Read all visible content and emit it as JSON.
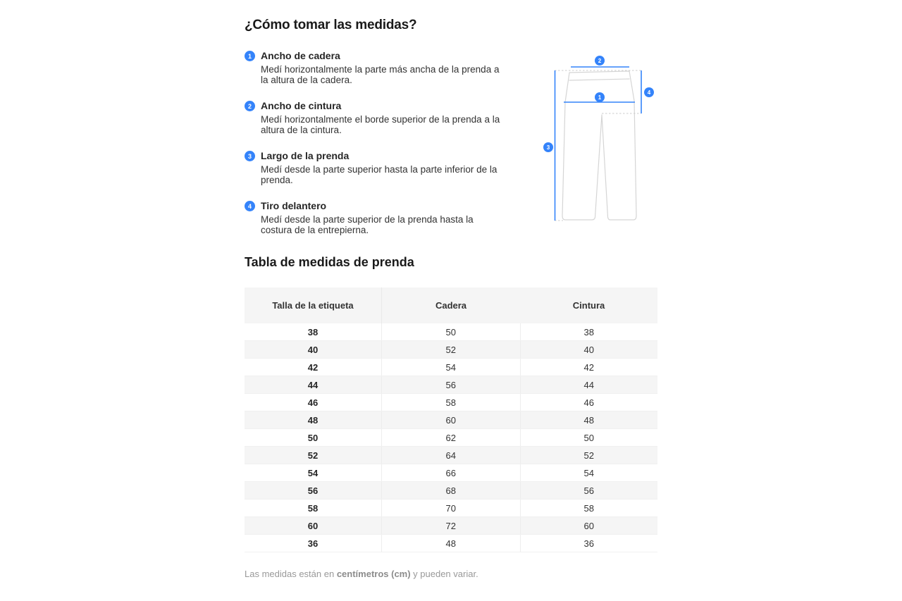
{
  "page": {
    "title": "¿Cómo tomar las medidas?",
    "accent_color": "#3483fa"
  },
  "instructions": [
    {
      "number": "1",
      "title": "Ancho de cadera",
      "description": "Medí horizontalmente la parte más ancha de la prenda a la altura de la cadera."
    },
    {
      "number": "2",
      "title": "Ancho de cintura",
      "description": "Medí horizontalmente el borde superior de la prenda a la altura de la cintura."
    },
    {
      "number": "3",
      "title": "Largo de la prenda",
      "description": "Medí desde la parte superior hasta la parte inferior de la prenda."
    },
    {
      "number": "4",
      "title": "Tiro delantero",
      "description": "Medí desde la parte superior de la prenda hasta la costura de la entrepierna."
    }
  ],
  "diagram": {
    "markers": [
      "1",
      "2",
      "3",
      "4"
    ]
  },
  "size_table": {
    "title": "Tabla de medidas de prenda",
    "columns": [
      "Talla de la etiqueta",
      "Cadera",
      "Cintura"
    ],
    "rows": [
      [
        "38",
        "50",
        "38"
      ],
      [
        "40",
        "52",
        "40"
      ],
      [
        "42",
        "54",
        "42"
      ],
      [
        "44",
        "56",
        "44"
      ],
      [
        "46",
        "58",
        "46"
      ],
      [
        "48",
        "60",
        "48"
      ],
      [
        "50",
        "62",
        "50"
      ],
      [
        "52",
        "64",
        "52"
      ],
      [
        "54",
        "66",
        "54"
      ],
      [
        "56",
        "68",
        "56"
      ],
      [
        "58",
        "70",
        "58"
      ],
      [
        "60",
        "72",
        "60"
      ],
      [
        "36",
        "48",
        "36"
      ]
    ]
  },
  "footnote": {
    "prefix": "Las medidas están en ",
    "bold": "centímetros (cm)",
    "suffix": " y pueden variar."
  }
}
